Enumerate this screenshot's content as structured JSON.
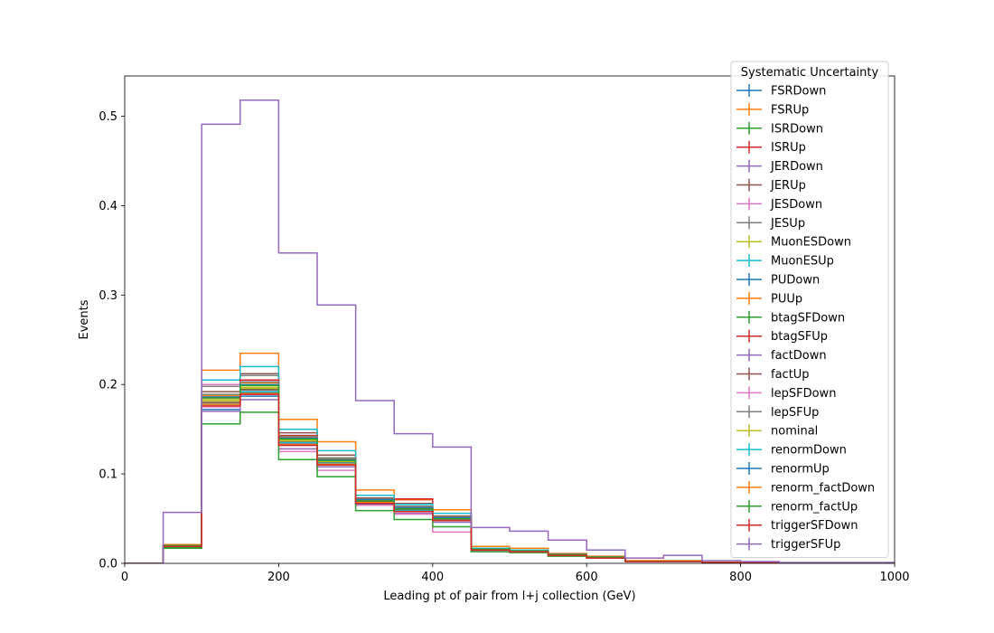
{
  "chart_data": {
    "type": "histogram-step",
    "xlabel": "Leading pt of pair from l+j collection (GeV)",
    "ylabel": "Events",
    "xlim": [
      0,
      1000
    ],
    "ylim": [
      0,
      0.545
    ],
    "x_ticks": [
      0,
      200,
      400,
      600,
      800,
      1000
    ],
    "y_ticks": [
      0.0,
      0.1,
      0.2,
      0.3,
      0.4,
      0.5
    ],
    "x_tick_labels": [
      "0",
      "200",
      "400",
      "600",
      "800",
      "1000"
    ],
    "y_tick_labels": [
      "0.0",
      "0.1",
      "0.2",
      "0.3",
      "0.4",
      "0.5"
    ],
    "grid": false,
    "bin_edges": [
      0,
      50,
      100,
      150,
      200,
      250,
      300,
      350,
      400,
      450,
      500,
      550,
      600,
      650,
      700,
      750,
      800,
      850,
      900,
      950,
      1000
    ],
    "legend": {
      "title": "Systematic Uncertainty",
      "placement": "upper-right"
    },
    "series": [
      {
        "name": "FSRDown",
        "color": "#1f77b4",
        "values": [
          0,
          0.019,
          0.172,
          0.187,
          0.133,
          0.112,
          0.066,
          0.059,
          0.048,
          0.015,
          0.013,
          0.009,
          0.006,
          0.002,
          0.002,
          0.001,
          0.001,
          0,
          0,
          0
        ]
      },
      {
        "name": "FSRUp",
        "color": "#ff7f0e",
        "values": [
          0,
          0.021,
          0.216,
          0.235,
          0.161,
          0.136,
          0.082,
          0.071,
          0.06,
          0.019,
          0.017,
          0.011,
          0.008,
          0.003,
          0.003,
          0.001,
          0.001,
          0,
          0,
          0
        ]
      },
      {
        "name": "ISRDown",
        "color": "#2ca02c",
        "values": [
          0,
          0.018,
          0.18,
          0.195,
          0.137,
          0.113,
          0.07,
          0.061,
          0.05,
          0.016,
          0.014,
          0.01,
          0.007,
          0.002,
          0.002,
          0.001,
          0.001,
          0,
          0,
          0
        ]
      },
      {
        "name": "ISRUp",
        "color": "#d62728",
        "values": [
          0,
          0.019,
          0.185,
          0.2,
          0.14,
          0.116,
          0.071,
          0.072,
          0.051,
          0.016,
          0.014,
          0.01,
          0.007,
          0.002,
          0.002,
          0.001,
          0.001,
          0,
          0,
          0
        ]
      },
      {
        "name": "JERDown",
        "color": "#9467bd",
        "values": [
          0,
          0.019,
          0.17,
          0.183,
          0.128,
          0.108,
          0.065,
          0.056,
          0.046,
          0.015,
          0.013,
          0.009,
          0.006,
          0.002,
          0.002,
          0.001,
          0.001,
          0,
          0,
          0
        ]
      },
      {
        "name": "JERUp",
        "color": "#8c564b",
        "values": [
          0,
          0.02,
          0.192,
          0.212,
          0.146,
          0.121,
          0.073,
          0.067,
          0.053,
          0.017,
          0.015,
          0.01,
          0.007,
          0.002,
          0.002,
          0.001,
          0.001,
          0,
          0,
          0
        ]
      },
      {
        "name": "JESDown",
        "color": "#e377c2",
        "values": [
          0,
          0.02,
          0.2,
          0.205,
          0.125,
          0.104,
          0.065,
          0.055,
          0.035,
          0.014,
          0.012,
          0.009,
          0.006,
          0.002,
          0.002,
          0.001,
          0.001,
          0,
          0,
          0
        ]
      },
      {
        "name": "JESUp",
        "color": "#7f7f7f",
        "values": [
          0,
          0.02,
          0.198,
          0.21,
          0.143,
          0.118,
          0.072,
          0.064,
          0.052,
          0.016,
          0.014,
          0.01,
          0.007,
          0.002,
          0.002,
          0.001,
          0.001,
          0,
          0,
          0
        ]
      },
      {
        "name": "MuonESDown",
        "color": "#bcbd22",
        "values": [
          0,
          0.019,
          0.183,
          0.197,
          0.138,
          0.115,
          0.07,
          0.061,
          0.05,
          0.016,
          0.014,
          0.01,
          0.007,
          0.002,
          0.002,
          0.001,
          0.001,
          0,
          0,
          0
        ]
      },
      {
        "name": "MuonESUp",
        "color": "#17becf",
        "values": [
          0,
          0.02,
          0.205,
          0.22,
          0.15,
          0.126,
          0.076,
          0.066,
          0.056,
          0.017,
          0.015,
          0.01,
          0.007,
          0.002,
          0.002,
          0.001,
          0.001,
          0,
          0,
          0
        ]
      },
      {
        "name": "PUDown",
        "color": "#1f77b4",
        "values": [
          0,
          0.019,
          0.178,
          0.191,
          0.134,
          0.112,
          0.068,
          0.059,
          0.049,
          0.015,
          0.013,
          0.009,
          0.006,
          0.002,
          0.002,
          0.001,
          0.001,
          0,
          0,
          0
        ]
      },
      {
        "name": "PUUp",
        "color": "#ff7f0e",
        "values": [
          0,
          0.02,
          0.188,
          0.202,
          0.141,
          0.117,
          0.071,
          0.062,
          0.051,
          0.016,
          0.014,
          0.01,
          0.007,
          0.002,
          0.002,
          0.001,
          0.001,
          0,
          0,
          0
        ]
      },
      {
        "name": "btagSFDown",
        "color": "#2ca02c",
        "values": [
          0,
          0.017,
          0.156,
          0.169,
          0.116,
          0.097,
          0.059,
          0.049,
          0.041,
          0.013,
          0.012,
          0.008,
          0.006,
          0.002,
          0.002,
          0.001,
          0.001,
          0,
          0,
          0
        ]
      },
      {
        "name": "btagSFUp",
        "color": "#d62728",
        "values": [
          0,
          0.02,
          0.186,
          0.205,
          0.143,
          0.118,
          0.072,
          0.063,
          0.052,
          0.016,
          0.014,
          0.01,
          0.007,
          0.002,
          0.002,
          0.001,
          0.001,
          0,
          0,
          0
        ]
      },
      {
        "name": "factDown",
        "color": "#9467bd",
        "values": [
          0,
          0.019,
          0.178,
          0.192,
          0.134,
          0.112,
          0.068,
          0.059,
          0.049,
          0.015,
          0.013,
          0.009,
          0.006,
          0.002,
          0.002,
          0.001,
          0.001,
          0,
          0,
          0
        ]
      },
      {
        "name": "factUp",
        "color": "#8c564b",
        "values": [
          0,
          0.019,
          0.18,
          0.194,
          0.136,
          0.113,
          0.069,
          0.06,
          0.049,
          0.015,
          0.013,
          0.009,
          0.006,
          0.002,
          0.002,
          0.001,
          0.001,
          0,
          0,
          0
        ]
      },
      {
        "name": "lepSFDown",
        "color": "#e377c2",
        "values": [
          0,
          0.019,
          0.175,
          0.189,
          0.132,
          0.11,
          0.067,
          0.058,
          0.048,
          0.015,
          0.013,
          0.009,
          0.006,
          0.002,
          0.002,
          0.001,
          0.001,
          0,
          0,
          0
        ]
      },
      {
        "name": "lepSFUp",
        "color": "#7f7f7f",
        "values": [
          0,
          0.02,
          0.189,
          0.203,
          0.142,
          0.118,
          0.072,
          0.063,
          0.052,
          0.016,
          0.014,
          0.01,
          0.007,
          0.002,
          0.002,
          0.001,
          0.001,
          0,
          0,
          0
        ]
      },
      {
        "name": "nominal",
        "color": "#bcbd22",
        "values": [
          0,
          0.019,
          0.182,
          0.196,
          0.137,
          0.114,
          0.07,
          0.061,
          0.05,
          0.016,
          0.014,
          0.01,
          0.007,
          0.002,
          0.002,
          0.001,
          0.001,
          0,
          0,
          0
        ]
      },
      {
        "name": "renormDown",
        "color": "#17becf",
        "values": [
          0,
          0.019,
          0.178,
          0.192,
          0.135,
          0.112,
          0.068,
          0.059,
          0.049,
          0.015,
          0.013,
          0.009,
          0.006,
          0.002,
          0.002,
          0.001,
          0.001,
          0,
          0,
          0
        ]
      },
      {
        "name": "renormUp",
        "color": "#1f77b4",
        "values": [
          0,
          0.02,
          0.186,
          0.2,
          0.14,
          0.116,
          0.071,
          0.062,
          0.051,
          0.016,
          0.014,
          0.01,
          0.007,
          0.002,
          0.002,
          0.001,
          0.001,
          0,
          0,
          0
        ]
      },
      {
        "name": "renorm_factDown",
        "color": "#ff7f0e",
        "values": [
          0,
          0.019,
          0.178,
          0.19,
          0.133,
          0.111,
          0.068,
          0.058,
          0.048,
          0.015,
          0.013,
          0.009,
          0.006,
          0.002,
          0.002,
          0.001,
          0.001,
          0,
          0,
          0
        ]
      },
      {
        "name": "renorm_factUp",
        "color": "#2ca02c",
        "values": [
          0,
          0.02,
          0.185,
          0.199,
          0.139,
          0.115,
          0.07,
          0.061,
          0.05,
          0.016,
          0.014,
          0.01,
          0.007,
          0.002,
          0.002,
          0.001,
          0.001,
          0,
          0,
          0
        ]
      },
      {
        "name": "triggerSFDown",
        "color": "#d62728",
        "values": [
          0,
          0.019,
          0.176,
          0.189,
          0.132,
          0.11,
          0.067,
          0.058,
          0.048,
          0.015,
          0.013,
          0.009,
          0.006,
          0.002,
          0.002,
          0.001,
          0.001,
          0,
          0,
          0
        ]
      },
      {
        "name": "triggerSFUp",
        "color": "#9467bd",
        "values": [
          0,
          0.057,
          0.491,
          0.518,
          0.347,
          0.289,
          0.182,
          0.145,
          0.13,
          0.04,
          0.036,
          0.026,
          0.015,
          0.006,
          0.009,
          0.003,
          0.002,
          0.001,
          0.001,
          0.001
        ]
      }
    ]
  }
}
